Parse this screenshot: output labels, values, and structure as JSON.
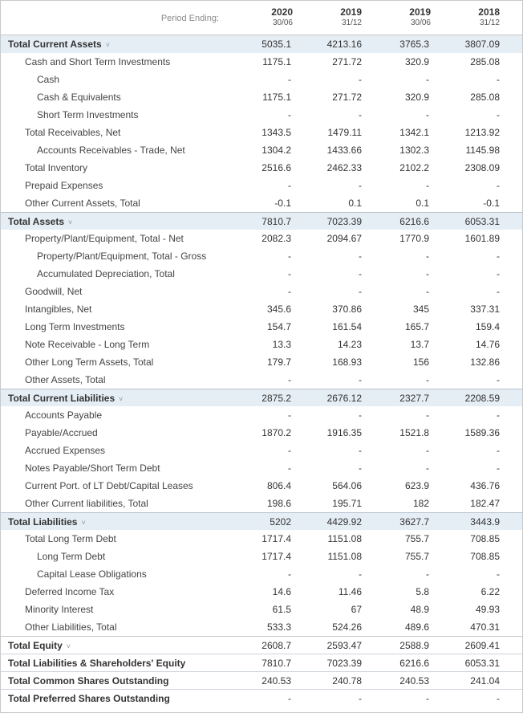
{
  "header": {
    "period_label": "Period Ending:",
    "columns": [
      {
        "year": "2020",
        "date": "30/06"
      },
      {
        "year": "2019",
        "date": "31/12"
      },
      {
        "year": "2019",
        "date": "30/06"
      },
      {
        "year": "2018",
        "date": "31/12"
      }
    ]
  },
  "rows": [
    {
      "label": "Total Current Assets",
      "level": 0,
      "section": true,
      "expand": true,
      "values": [
        "5035.1",
        "4213.16",
        "3765.3",
        "3807.09"
      ]
    },
    {
      "label": "Cash and Short Term Investments",
      "level": 1,
      "values": [
        "1175.1",
        "271.72",
        "320.9",
        "285.08"
      ]
    },
    {
      "label": "Cash",
      "level": 2,
      "values": [
        "-",
        "-",
        "-",
        "-"
      ]
    },
    {
      "label": "Cash & Equivalents",
      "level": 2,
      "values": [
        "1175.1",
        "271.72",
        "320.9",
        "285.08"
      ]
    },
    {
      "label": "Short Term Investments",
      "level": 2,
      "values": [
        "-",
        "-",
        "-",
        "-"
      ]
    },
    {
      "label": "Total Receivables, Net",
      "level": 1,
      "values": [
        "1343.5",
        "1479.11",
        "1342.1",
        "1213.92"
      ]
    },
    {
      "label": "Accounts Receivables - Trade, Net",
      "level": 2,
      "values": [
        "1304.2",
        "1433.66",
        "1302.3",
        "1145.98"
      ]
    },
    {
      "label": "Total Inventory",
      "level": 1,
      "values": [
        "2516.6",
        "2462.33",
        "2102.2",
        "2308.09"
      ]
    },
    {
      "label": "Prepaid Expenses",
      "level": 1,
      "values": [
        "-",
        "-",
        "-",
        "-"
      ]
    },
    {
      "label": "Other Current Assets, Total",
      "level": 1,
      "values": [
        "-0.1",
        "0.1",
        "0.1",
        "-0.1"
      ]
    },
    {
      "label": "Total Assets",
      "level": 0,
      "section": true,
      "expand": true,
      "values": [
        "7810.7",
        "7023.39",
        "6216.6",
        "6053.31"
      ]
    },
    {
      "label": "Property/Plant/Equipment, Total - Net",
      "level": 1,
      "values": [
        "2082.3",
        "2094.67",
        "1770.9",
        "1601.89"
      ]
    },
    {
      "label": "Property/Plant/Equipment, Total - Gross",
      "level": 2,
      "values": [
        "-",
        "-",
        "-",
        "-"
      ]
    },
    {
      "label": "Accumulated Depreciation, Total",
      "level": 2,
      "values": [
        "-",
        "-",
        "-",
        "-"
      ]
    },
    {
      "label": "Goodwill, Net",
      "level": 1,
      "values": [
        "-",
        "-",
        "-",
        "-"
      ]
    },
    {
      "label": "Intangibles, Net",
      "level": 1,
      "values": [
        "345.6",
        "370.86",
        "345",
        "337.31"
      ]
    },
    {
      "label": "Long Term Investments",
      "level": 1,
      "values": [
        "154.7",
        "161.54",
        "165.7",
        "159.4"
      ]
    },
    {
      "label": "Note Receivable - Long Term",
      "level": 1,
      "values": [
        "13.3",
        "14.23",
        "13.7",
        "14.76"
      ]
    },
    {
      "label": "Other Long Term Assets, Total",
      "level": 1,
      "values": [
        "179.7",
        "168.93",
        "156",
        "132.86"
      ]
    },
    {
      "label": "Other Assets, Total",
      "level": 1,
      "values": [
        "-",
        "-",
        "-",
        "-"
      ]
    },
    {
      "label": "Total Current Liabilities",
      "level": 0,
      "section": true,
      "expand": true,
      "values": [
        "2875.2",
        "2676.12",
        "2327.7",
        "2208.59"
      ]
    },
    {
      "label": "Accounts Payable",
      "level": 1,
      "values": [
        "-",
        "-",
        "-",
        "-"
      ]
    },
    {
      "label": "Payable/Accrued",
      "level": 1,
      "values": [
        "1870.2",
        "1916.35",
        "1521.8",
        "1589.36"
      ]
    },
    {
      "label": "Accrued Expenses",
      "level": 1,
      "values": [
        "-",
        "-",
        "-",
        "-"
      ]
    },
    {
      "label": "Notes Payable/Short Term Debt",
      "level": 1,
      "values": [
        "-",
        "-",
        "-",
        "-"
      ]
    },
    {
      "label": "Current Port. of LT Debt/Capital Leases",
      "level": 1,
      "values": [
        "806.4",
        "564.06",
        "623.9",
        "436.76"
      ]
    },
    {
      "label": "Other Current liabilities, Total",
      "level": 1,
      "values": [
        "198.6",
        "195.71",
        "182",
        "182.47"
      ]
    },
    {
      "label": "Total Liabilities",
      "level": 0,
      "section": true,
      "expand": true,
      "values": [
        "5202",
        "4429.92",
        "3627.7",
        "3443.9"
      ]
    },
    {
      "label": "Total Long Term Debt",
      "level": 1,
      "values": [
        "1717.4",
        "1151.08",
        "755.7",
        "708.85"
      ]
    },
    {
      "label": "Long Term Debt",
      "level": 2,
      "values": [
        "1717.4",
        "1151.08",
        "755.7",
        "708.85"
      ]
    },
    {
      "label": "Capital Lease Obligations",
      "level": 2,
      "values": [
        "-",
        "-",
        "-",
        "-"
      ]
    },
    {
      "label": "Deferred Income Tax",
      "level": 1,
      "values": [
        "14.6",
        "11.46",
        "5.8",
        "6.22"
      ]
    },
    {
      "label": "Minority Interest",
      "level": 1,
      "values": [
        "61.5",
        "67",
        "48.9",
        "49.93"
      ]
    },
    {
      "label": "Other Liabilities, Total",
      "level": 1,
      "values": [
        "533.3",
        "524.26",
        "489.6",
        "470.31"
      ]
    },
    {
      "label": "Total Equity",
      "level": 0,
      "total": true,
      "expand": true,
      "values": [
        "2608.7",
        "2593.47",
        "2588.9",
        "2609.41"
      ]
    },
    {
      "label": "Total Liabilities & Shareholders' Equity",
      "level": 0,
      "total": true,
      "values": [
        "7810.7",
        "7023.39",
        "6216.6",
        "6053.31"
      ]
    },
    {
      "label": "Total Common Shares Outstanding",
      "level": 0,
      "total": true,
      "values": [
        "240.53",
        "240.78",
        "240.53",
        "241.04"
      ]
    },
    {
      "label": "Total Preferred Shares Outstanding",
      "level": 0,
      "total": true,
      "values": [
        "-",
        "-",
        "-",
        "-"
      ]
    }
  ],
  "icons": {
    "expand": "chevron-down-icon"
  },
  "colors": {
    "section_bg": "#e5edf5",
    "border": "#c8c8c8",
    "text": "#333333",
    "muted": "#8a8a8a"
  }
}
